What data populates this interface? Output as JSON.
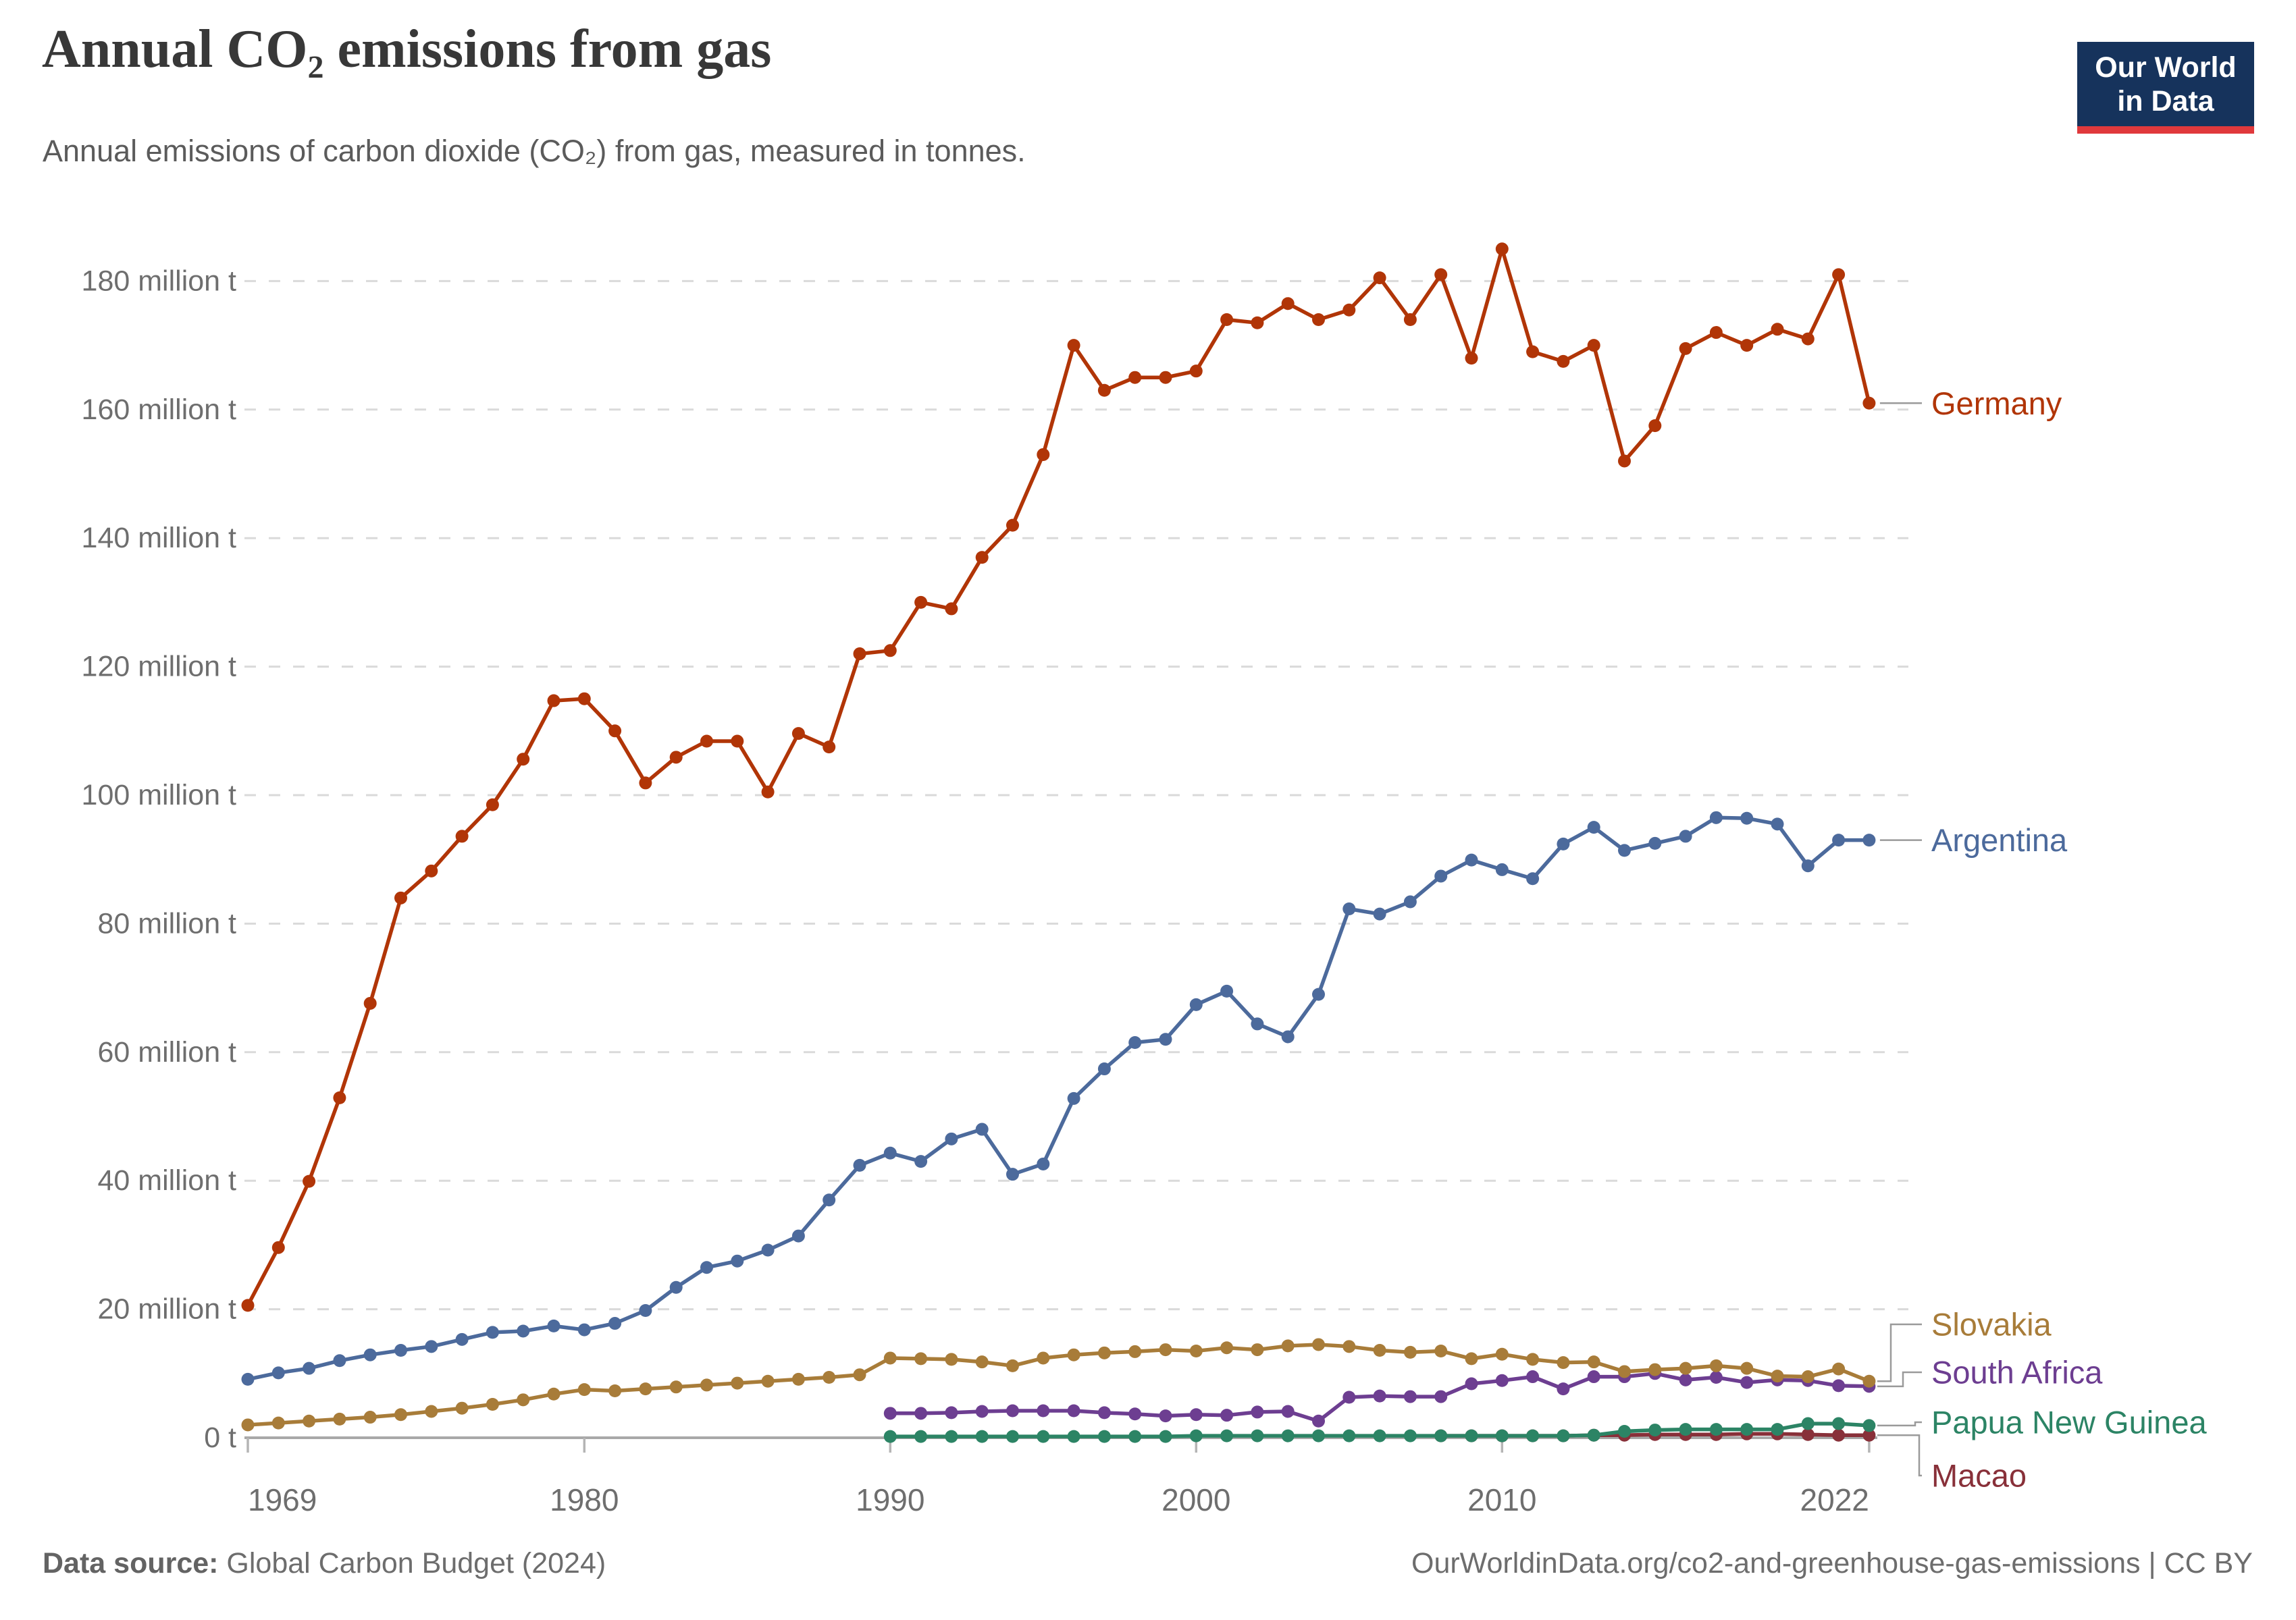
{
  "header": {
    "title": "Annual CO₂ emissions from gas",
    "subtitle": "Annual emissions of carbon dioxide (CO₂) from gas, measured in tonnes.",
    "logo": {
      "line1": "Our World",
      "line2": "in Data"
    }
  },
  "footer": {
    "source_label": "Data source:",
    "source_value": " Global Carbon Budget (2024)",
    "attribution": "OurWorldinData.org/co2-and-greenhouse-gas-emissions | CC BY"
  },
  "chart_data": {
    "type": "line",
    "title": "Annual CO₂ emissions from gas",
    "unit": "million tonnes",
    "xlabel": "",
    "ylabel": "",
    "xlim": [
      1969,
      2022
    ],
    "ylim": [
      0,
      190
    ],
    "grid": "horizontal-dashed",
    "legend_position": "right-end-labels",
    "x_ticks": [
      {
        "year": 1969,
        "label": "1969",
        "align": "start"
      },
      {
        "year": 1980,
        "label": "1980",
        "align": "middle"
      },
      {
        "year": 1990,
        "label": "1990",
        "align": "middle"
      },
      {
        "year": 2000,
        "label": "2000",
        "align": "middle"
      },
      {
        "year": 2010,
        "label": "2010",
        "align": "middle"
      },
      {
        "year": 2022,
        "label": "2022",
        "align": "end"
      }
    ],
    "y_ticks": [
      {
        "value": 0,
        "label": "0 t"
      },
      {
        "value": 20,
        "label": "20 million t"
      },
      {
        "value": 40,
        "label": "40 million t"
      },
      {
        "value": 60,
        "label": "60 million t"
      },
      {
        "value": 80,
        "label": "80 million t"
      },
      {
        "value": 100,
        "label": "100 million t"
      },
      {
        "value": 120,
        "label": "120 million t"
      },
      {
        "value": 140,
        "label": "140 million t"
      },
      {
        "value": 160,
        "label": "160 million t"
      },
      {
        "value": 180,
        "label": "180 million t"
      }
    ],
    "series": [
      {
        "name": "Macao",
        "color": "#883039",
        "start_year": 2008,
        "values": [
          0.3,
          0.3,
          0.3,
          0.3,
          0.3,
          0.4,
          0.4,
          0.5,
          0.5,
          0.5,
          0.6,
          0.6,
          0.5,
          0.4,
          0.4
        ]
      },
      {
        "name": "Papua New Guinea",
        "color": "#2C8465",
        "start_year": 1990,
        "values": [
          0.2,
          0.2,
          0.2,
          0.2,
          0.2,
          0.2,
          0.2,
          0.2,
          0.2,
          0.2,
          0.3,
          0.3,
          0.3,
          0.3,
          0.3,
          0.3,
          0.3,
          0.3,
          0.3,
          0.3,
          0.3,
          0.3,
          0.3,
          0.4,
          1.0,
          1.2,
          1.3,
          1.3,
          1.3,
          1.3,
          2.2,
          2.2,
          1.9
        ]
      },
      {
        "name": "South Africa",
        "color": "#6D3E91",
        "start_year": 1990,
        "values": [
          3.8,
          3.8,
          3.9,
          4.1,
          4.2,
          4.2,
          4.2,
          3.9,
          3.7,
          3.4,
          3.6,
          3.5,
          4.0,
          4.1,
          2.6,
          6.3,
          6.5,
          6.4,
          6.4,
          8.4,
          8.9,
          9.5,
          7.6,
          9.5,
          9.5,
          10.0,
          9.0,
          9.4,
          8.6,
          9.0,
          8.9,
          8.1,
          8.0
        ]
      },
      {
        "name": "Slovakia",
        "color": "#A87C39",
        "start_year": 1969,
        "values": [
          2.0,
          2.3,
          2.6,
          2.9,
          3.2,
          3.6,
          4.1,
          4.6,
          5.2,
          5.9,
          6.8,
          7.5,
          7.3,
          7.6,
          7.9,
          8.2,
          8.5,
          8.8,
          9.1,
          9.4,
          9.8,
          12.4,
          12.3,
          12.2,
          11.8,
          11.2,
          12.4,
          12.9,
          13.2,
          13.4,
          13.7,
          13.5,
          14.0,
          13.7,
          14.3,
          14.5,
          14.2,
          13.6,
          13.3,
          13.5,
          12.3,
          13.0,
          12.2,
          11.7,
          11.8,
          10.3,
          10.6,
          10.8,
          11.2,
          10.8,
          9.6,
          9.5,
          10.7,
          8.8
        ]
      },
      {
        "name": "Argentina",
        "color": "#4C6A9C",
        "start_year": 1969,
        "values": [
          9.1,
          10.1,
          10.8,
          12.0,
          12.9,
          13.6,
          14.2,
          15.3,
          16.4,
          16.6,
          17.4,
          16.8,
          17.8,
          19.8,
          23.4,
          26.5,
          27.5,
          29.2,
          31.4,
          37.0,
          42.4,
          44.3,
          43.0,
          46.5,
          48.0,
          41.0,
          42.6,
          52.8,
          57.4,
          61.5,
          62.0,
          67.4,
          69.5,
          64.4,
          62.4,
          69.0,
          82.3,
          81.5,
          83.4,
          87.4,
          89.9,
          88.4,
          87.0,
          92.4,
          95.0,
          91.4,
          92.5,
          93.6,
          96.5,
          96.4,
          95.5,
          89.0,
          93.0,
          93.0
        ]
      },
      {
        "name": "Germany",
        "color": "#B13507",
        "start_year": 1969,
        "values": [
          20.6,
          29.6,
          39.9,
          52.9,
          67.6,
          84.0,
          88.2,
          93.6,
          98.5,
          105.6,
          114.7,
          115.0,
          110.0,
          101.9,
          105.9,
          108.4,
          108.4,
          100.5,
          109.6,
          107.5,
          122.0,
          122.5,
          130.0,
          129.0,
          137.0,
          142.0,
          153.0,
          170.0,
          163.0,
          165.0,
          165.0,
          166.0,
          174.0,
          173.5,
          176.5,
          174.0,
          175.5,
          180.5,
          174.0,
          181.0,
          168.0,
          185.0,
          169.0,
          167.5,
          170.0,
          152.0,
          157.5,
          169.5,
          172.0,
          170.0,
          172.5,
          171.0,
          181.0,
          161.0
        ]
      }
    ]
  }
}
